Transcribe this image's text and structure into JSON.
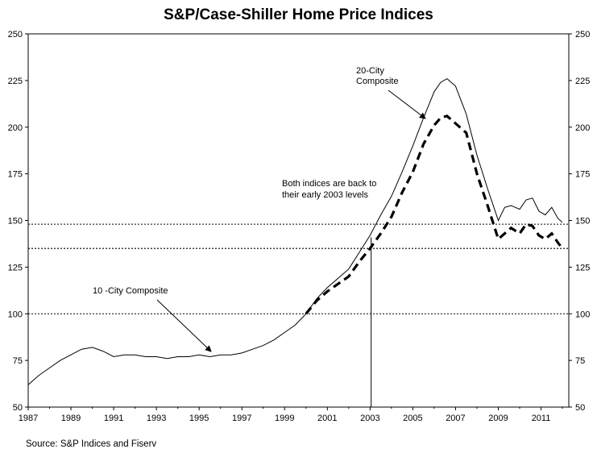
{
  "page": {
    "source": "Source: S&P Indices and Fiserv"
  },
  "chart_data": {
    "type": "line",
    "title": "S&P/Case-Shiller Home Price Indices",
    "xlabel": "",
    "ylabel": "",
    "xlim": [
      1987,
      2012.3
    ],
    "ylim": [
      50,
      250
    ],
    "y_ticks": [
      "50",
      "75",
      "100",
      "125",
      "150",
      "175",
      "200",
      "225",
      "250"
    ],
    "x_ticks": [
      "1987",
      "1989",
      "1991",
      "1993",
      "1995",
      "1997",
      "1999",
      "2001",
      "2003",
      "2005",
      "2007",
      "2009",
      "2011"
    ],
    "grid": false,
    "legend": "none",
    "series": [
      {
        "name": "10 -City Composite",
        "style": "solid-thin",
        "x": [
          1987.0,
          1987.5,
          1988.0,
          1988.5,
          1989.0,
          1989.5,
          1990.0,
          1990.5,
          1991.0,
          1991.5,
          1992.0,
          1992.5,
          1993.0,
          1993.5,
          1994.0,
          1994.5,
          1995.0,
          1995.5,
          1996.0,
          1996.5,
          1997.0,
          1997.5,
          1998.0,
          1998.5,
          1999.0,
          1999.5,
          2000.0,
          2000.5,
          2001.0,
          2001.5,
          2002.0,
          2002.5,
          2003.0,
          2003.5,
          2004.0,
          2004.5,
          2005.0,
          2005.5,
          2006.0,
          2006.3,
          2006.6,
          2007.0,
          2007.5,
          2008.0,
          2008.5,
          2009.0,
          2009.3,
          2009.6,
          2010.0,
          2010.3,
          2010.6,
          2010.9,
          2011.2,
          2011.5,
          2011.8,
          2012.0
        ],
        "values": [
          62,
          67,
          71,
          75,
          78,
          81,
          82,
          80,
          77,
          78,
          78,
          77,
          77,
          76,
          77,
          77,
          78,
          77,
          78,
          78,
          79,
          81,
          83,
          86,
          90,
          94,
          100,
          108,
          114,
          119,
          124,
          133,
          142,
          153,
          163,
          176,
          190,
          205,
          219,
          224,
          226,
          222,
          207,
          185,
          167,
          150,
          157,
          158,
          156,
          161,
          162,
          155,
          153,
          157,
          151,
          149
        ]
      },
      {
        "name": "20-City Composite",
        "style": "dashed-thick",
        "x": [
          2000.0,
          2000.5,
          2001.0,
          2001.5,
          2002.0,
          2002.5,
          2003.0,
          2003.5,
          2004.0,
          2004.5,
          2005.0,
          2005.5,
          2006.0,
          2006.3,
          2006.6,
          2007.0,
          2007.5,
          2008.0,
          2008.5,
          2009.0,
          2009.3,
          2009.6,
          2010.0,
          2010.3,
          2010.6,
          2010.9,
          2011.2,
          2011.5,
          2011.8,
          2012.0
        ],
        "values": [
          100,
          107,
          112,
          116,
          120,
          128,
          135,
          143,
          152,
          165,
          176,
          191,
          201,
          205,
          206,
          202,
          197,
          175,
          158,
          140,
          143,
          146,
          143,
          148,
          147,
          142,
          140,
          143,
          138,
          135
        ]
      }
    ],
    "reference_lines": [
      100,
      148,
      135
    ],
    "annotations": [
      {
        "text": [
          "20-City",
          "Composite"
        ]
      },
      {
        "text": [
          "Both indices are back to",
          "their early 2003 levels"
        ]
      },
      {
        "text": [
          "10 -City Composite"
        ]
      }
    ]
  }
}
